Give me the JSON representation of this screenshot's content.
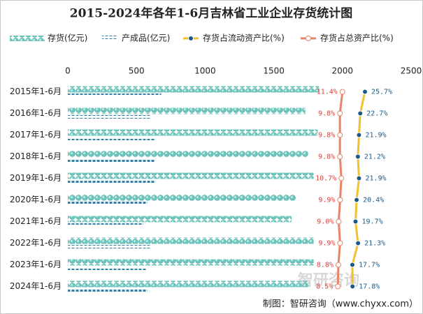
{
  "chart_data": {
    "type": "bar-line",
    "title": "2015-2024年各年1-6月吉林省工业企业存货统计图",
    "categories": [
      "2015年1-6月",
      "2016年1-6月",
      "2017年1-6月",
      "2018年1-6月",
      "2019年1-6月",
      "2020年1-6月",
      "2021年1-6月",
      "2022年1-6月",
      "2023年1-6月",
      "2024年1-6月"
    ],
    "xlim": [
      0,
      2500
    ],
    "xticks": [
      0,
      500,
      1000,
      1500,
      2000,
      2500
    ],
    "x2lim": [
      -163,
      55
    ],
    "series": [
      {
        "name": "存货(亿元)",
        "type": "bar",
        "color": "#6cc5bd",
        "values": [
          1830,
          1730,
          1820,
          1750,
          1790,
          1660,
          1630,
          1790,
          1790,
          1750
        ]
      },
      {
        "name": "产成品(亿元)",
        "type": "bar",
        "color": "#2f7fa8",
        "values": [
          680,
          600,
          640,
          630,
          640,
          580,
          550,
          600,
          570,
          580
        ]
      },
      {
        "name": "存货占流动资产比(%)",
        "type": "line",
        "axis": "x2",
        "color": "#f2c12e",
        "marker_color": "#1a5a8a",
        "values": [
          25.7,
          22.7,
          21.9,
          21.2,
          21.9,
          20.4,
          19.7,
          21.3,
          17.7,
          17.8
        ],
        "value_labels": [
          "25.7%",
          "22.7%",
          "21.9%",
          "21.2%",
          "21.9%",
          "20.4%",
          "19.7%",
          "21.3%",
          "17.7%",
          "17.8%"
        ]
      },
      {
        "name": "存货占总资产比(%)",
        "type": "line",
        "axis": "x2",
        "color": "#e8846a",
        "marker_color": "#ffffff",
        "values": [
          11.4,
          9.8,
          9.8,
          9.8,
          10.7,
          9.9,
          9.0,
          9.9,
          8.8,
          8.5
        ],
        "value_labels": [
          "11.4%",
          "9.8%",
          "9.8%",
          "9.8%",
          "10.7%",
          "9.9%",
          "9.0%",
          "9.9%",
          "8.8%",
          "8.5%"
        ]
      }
    ],
    "source": "制图：智研咨询（www.chyxx.com）",
    "watermark": "智研咨询"
  }
}
